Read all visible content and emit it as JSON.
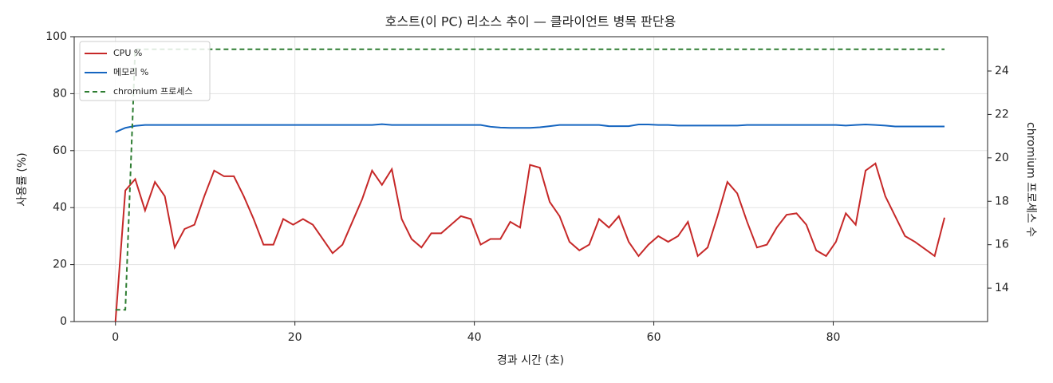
{
  "chart_data": {
    "type": "line",
    "title": "호스트(이 PC) 리소스 추이 — 클라이언트 병목 판단용",
    "xlabel": "경과 시간 (초)",
    "ylabel": "사용률 (%)",
    "y2label": "chromium 프로세스 수",
    "x": [
      0,
      1.1,
      2.2,
      3.3,
      4.4,
      5.5,
      6.6,
      7.7,
      8.8,
      9.9,
      11,
      12.1,
      13.2,
      14.3,
      15.4,
      16.5,
      17.6,
      18.7,
      19.8,
      20.9,
      22,
      23.1,
      24.2,
      25.3,
      26.4,
      27.5,
      28.6,
      29.7,
      30.8,
      31.9,
      33,
      34.1,
      35.2,
      36.3,
      37.4,
      38.5,
      39.6,
      40.7,
      41.8,
      42.9,
      44,
      45.1,
      46.2,
      47.3,
      48.4,
      49.5,
      50.6,
      51.7,
      52.8,
      53.9,
      55,
      56.1,
      57.2,
      58.3,
      59.4,
      60.5,
      61.6,
      62.7,
      63.8,
      64.9,
      66,
      67.1,
      68.2,
      69.3,
      70.4,
      71.5,
      72.6,
      73.7,
      74.8,
      75.9,
      77,
      78.1,
      79.2,
      80.3,
      81.4,
      82.5,
      83.6,
      84.7,
      85.8,
      86.9,
      88,
      89.1,
      90.2,
      91.3,
      92.4
    ],
    "series": [
      {
        "name": "CPU %",
        "color": "#c62828",
        "style": "solid",
        "axis": "y",
        "values": [
          0,
          46,
          50,
          39,
          49,
          44,
          26,
          32.5,
          34,
          44,
          53,
          51,
          51,
          44,
          36,
          27,
          27,
          36,
          34,
          36,
          34,
          29,
          24,
          27,
          35,
          43,
          53,
          48,
          53.5,
          36,
          29,
          26,
          31,
          31,
          34,
          37,
          36,
          27,
          29,
          29,
          35,
          33,
          55,
          54,
          42,
          37,
          28,
          25,
          27,
          36,
          33,
          37,
          28,
          23,
          27,
          30,
          28,
          30,
          35,
          23,
          26,
          37,
          49,
          45,
          35,
          26,
          27,
          33,
          37.5,
          38,
          34,
          25,
          23,
          28,
          38,
          34,
          53,
          55.5,
          44,
          37,
          30,
          28,
          25.5,
          23,
          36.5
        ]
      },
      {
        "name": "메모리 %",
        "color": "#1565c0",
        "style": "solid",
        "axis": "y",
        "values": [
          66.5,
          68,
          68.7,
          69,
          69,
          69,
          69,
          69,
          69,
          69,
          69,
          69,
          69,
          69,
          69,
          69,
          69,
          69,
          69,
          69,
          69,
          69,
          69,
          69,
          69,
          69,
          69,
          69.3,
          69,
          69,
          69,
          69,
          69,
          69,
          69,
          69,
          69,
          69,
          68.4,
          68.1,
          68,
          68,
          68,
          68.2,
          68.6,
          69,
          69,
          69,
          69,
          69,
          68.6,
          68.6,
          68.6,
          69.2,
          69.2,
          69,
          69,
          68.8,
          68.8,
          68.8,
          68.8,
          68.8,
          68.8,
          68.8,
          69,
          69,
          69,
          69,
          69,
          69,
          69,
          69,
          69,
          69,
          68.8,
          69,
          69.2,
          69,
          68.8,
          68.5,
          68.5,
          68.5,
          68.5,
          68.5,
          68.5
        ]
      },
      {
        "name": "chromium 프로세스",
        "color": "#2e7d32",
        "style": "dashed",
        "axis": "y2",
        "values": [
          13,
          13,
          25,
          25,
          25,
          25,
          25,
          25,
          25,
          25,
          25,
          25,
          25,
          25,
          25,
          25,
          25,
          25,
          25,
          25,
          25,
          25,
          25,
          25,
          25,
          25,
          25,
          25,
          25,
          25,
          25,
          25,
          25,
          25,
          25,
          25,
          25,
          25,
          25,
          25,
          25,
          25,
          25,
          25,
          25,
          25,
          25,
          25,
          25,
          25,
          25,
          25,
          25,
          25,
          25,
          25,
          25,
          25,
          25,
          25,
          25,
          25,
          25,
          25,
          25,
          25,
          25,
          25,
          25,
          25,
          25,
          25,
          25,
          25,
          25,
          25,
          25,
          25,
          25,
          25,
          25,
          25,
          25,
          25,
          25
        ]
      }
    ],
    "xlim": [
      -4.6,
      97.2
    ],
    "xticks": [
      0,
      20,
      40,
      60,
      80
    ],
    "ylim": [
      0,
      100
    ],
    "yticks": [
      0,
      20,
      40,
      60,
      80,
      100
    ],
    "y2lim": [
      12.46,
      25.58
    ],
    "y2ticks": [
      14,
      16,
      18,
      20,
      22,
      24
    ],
    "grid": true,
    "legend": "upper-left"
  }
}
